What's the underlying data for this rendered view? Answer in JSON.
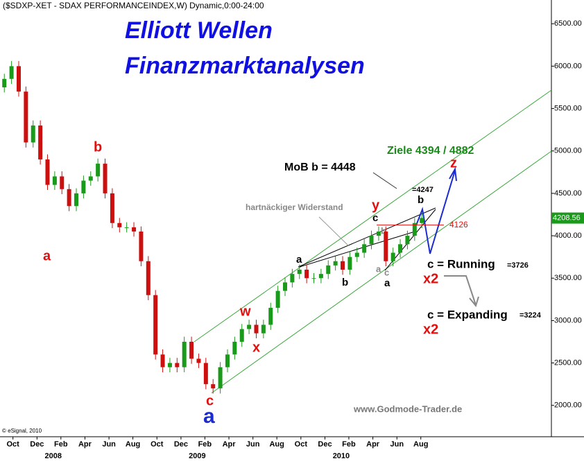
{
  "chart_data": {
    "type": "candlestick",
    "title": "($SDXP-XET - SDAX PERFORMANCEINDEX,W) Dynamic,0:00-24:00",
    "brand_title": [
      "Elliott Wellen",
      "Finanzmarktanalysen"
    ],
    "source": "www.Godmode-Trader.de",
    "copyright": "© eSignal, 2010",
    "up_color": "#1a9a1a",
    "down_color": "#cc1010",
    "x": [
      2007.69,
      2007.74,
      2007.79,
      2007.84,
      2007.89,
      2007.94,
      2007.99,
      2008.04,
      2008.09,
      2008.14,
      2008.19,
      2008.24,
      2008.29,
      2008.34,
      2008.39,
      2008.44,
      2008.49,
      2008.54,
      2008.59,
      2008.64,
      2008.69,
      2008.74,
      2008.79,
      2008.84,
      2008.89,
      2008.94,
      2008.99,
      2009.04,
      2009.09,
      2009.14,
      2009.19,
      2009.24,
      2009.29,
      2009.34,
      2009.39,
      2009.44,
      2009.49,
      2009.54,
      2009.59,
      2009.64,
      2009.69,
      2009.74,
      2009.79,
      2009.84,
      2009.89,
      2009.94,
      2009.99,
      2010.04,
      2010.09,
      2010.14,
      2010.19,
      2010.24,
      2010.29,
      2010.34,
      2010.39,
      2010.44,
      2010.49,
      2010.54,
      2010.59
    ],
    "open": [
      5750,
      5850,
      6000,
      5700,
      5100,
      5300,
      4900,
      4600,
      4700,
      4550,
      4350,
      4500,
      4650,
      4700,
      4850,
      4500,
      4150,
      4100,
      4100,
      4050,
      3700,
      3300,
      2600,
      2450,
      2500,
      2450,
      2750,
      2550,
      2500,
      2250,
      2200,
      2450,
      2600,
      2750,
      2900,
      2950,
      2850,
      2950,
      3150,
      3350,
      3450,
      3550,
      3600,
      3500,
      3500,
      3550,
      3650,
      3700,
      3600,
      3750,
      3800,
      3900,
      4000,
      4050,
      3700,
      3800,
      3900,
      4000,
      4150
    ],
    "high": [
      5910,
      6060,
      6060,
      5760,
      5360,
      5360,
      4960,
      4760,
      4760,
      4610,
      4560,
      4710,
      4760,
      4910,
      4910,
      4560,
      4210,
      4160,
      4160,
      4110,
      3760,
      3360,
      2660,
      2560,
      2560,
      2810,
      2810,
      2610,
      2560,
      2310,
      2510,
      2660,
      2810,
      2960,
      3010,
      3010,
      3010,
      3210,
      3410,
      3510,
      3610,
      3660,
      3660,
      3560,
      3610,
      3710,
      3760,
      3760,
      3810,
      3860,
      3960,
      4060,
      4110,
      4110,
      3860,
      3960,
      4060,
      4210,
      4270
    ],
    "low": [
      5690,
      5790,
      5640,
      5040,
      5040,
      4840,
      4540,
      4540,
      4490,
      4290,
      4290,
      4440,
      4590,
      4640,
      4440,
      4090,
      4040,
      4040,
      3990,
      3640,
      3240,
      2540,
      2390,
      2390,
      2390,
      2390,
      2490,
      2440,
      2190,
      2140,
      2140,
      2390,
      2540,
      2690,
      2840,
      2790,
      2790,
      2890,
      3090,
      3290,
      3390,
      3490,
      3440,
      3440,
      3440,
      3490,
      3590,
      3540,
      3540,
      3690,
      3740,
      3840,
      3940,
      3640,
      3640,
      3740,
      3840,
      3940,
      4090
    ],
    "close": [
      5850,
      6000,
      5700,
      5100,
      5300,
      4900,
      4600,
      4700,
      4550,
      4350,
      4500,
      4650,
      4700,
      4850,
      4500,
      4150,
      4100,
      4100,
      4050,
      3700,
      3300,
      2600,
      2450,
      2500,
      2450,
      2750,
      2550,
      2500,
      2250,
      2200,
      2450,
      2600,
      2750,
      2900,
      2950,
      2850,
      2950,
      3150,
      3350,
      3450,
      3550,
      3600,
      3500,
      3500,
      3550,
      3650,
      3700,
      3600,
      3750,
      3800,
      3900,
      4000,
      4050,
      3700,
      3800,
      3900,
      4000,
      4150,
      4210
    ],
    "xlim": [
      2007.66,
      2011.49
    ],
    "ylim": [
      1630,
      6780
    ],
    "yticks": [
      {
        "value": 2000,
        "label": "2000.00"
      },
      {
        "value": 2500,
        "label": "2500.00"
      },
      {
        "value": 3000,
        "label": "3000.00"
      },
      {
        "value": 3500,
        "label": "3500.00"
      },
      {
        "value": 4000,
        "label": "4000.00"
      },
      {
        "value": 4500,
        "label": "4500.00"
      },
      {
        "value": 5000,
        "label": "5000.00"
      },
      {
        "value": 5500,
        "label": "5500.00"
      },
      {
        "value": 6000,
        "label": "6000.00"
      },
      {
        "value": 6500,
        "label": "6500.00"
      }
    ],
    "xticks": [
      {
        "value": 2007.75,
        "label": "Oct"
      },
      {
        "value": 2007.917,
        "label": "Dec"
      },
      {
        "value": 2008.083,
        "label": "Feb"
      },
      {
        "value": 2008.25,
        "label": "Apr"
      },
      {
        "value": 2008.417,
        "label": "Jun"
      },
      {
        "value": 2008.583,
        "label": "Aug"
      },
      {
        "value": 2008.75,
        "label": "Oct"
      },
      {
        "value": 2008.917,
        "label": "Dec"
      },
      {
        "value": 2009.083,
        "label": "Feb"
      },
      {
        "value": 2009.25,
        "label": "Apr"
      },
      {
        "value": 2009.417,
        "label": "Jun"
      },
      {
        "value": 2009.583,
        "label": "Aug"
      },
      {
        "value": 2009.75,
        "label": "Oct"
      },
      {
        "value": 2009.917,
        "label": "Dec"
      },
      {
        "value": 2010.083,
        "label": "Feb"
      },
      {
        "value": 2010.25,
        "label": "Apr"
      },
      {
        "value": 2010.417,
        "label": "Jun"
      },
      {
        "value": 2010.583,
        "label": "Aug"
      }
    ],
    "year_labels": [
      {
        "value": 2008.03,
        "label": "2008"
      },
      {
        "value": 2009.03,
        "label": "2009"
      },
      {
        "value": 2010.03,
        "label": "2010"
      }
    ],
    "last_price": 4208.56,
    "level": 4126,
    "annotations": [
      "a",
      "b",
      "c",
      "a",
      "w",
      "x",
      "y",
      "z",
      "a",
      "b",
      "c",
      "b",
      "a",
      "c",
      "a",
      "b",
      "x2",
      "x2",
      "MoB b = 4448",
      "Ziele 4394 / 4882",
      "hartnäckiger Widerstand",
      "=4247",
      "c = Running",
      "=3726",
      "c = Expanding",
      "=3224"
    ]
  }
}
